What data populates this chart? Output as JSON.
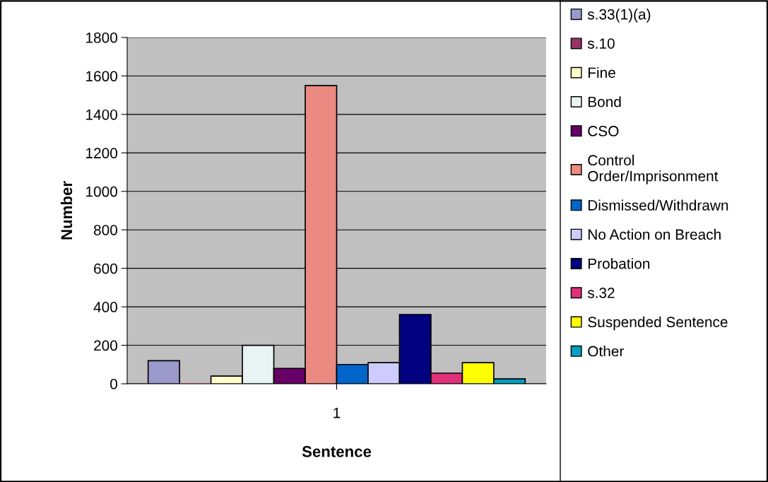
{
  "chart_data": {
    "type": "bar",
    "xlabel": "Sentence",
    "ylabel": "Number",
    "categories": [
      "1"
    ],
    "series": [
      {
        "name": "s.33(1)(a)",
        "color": "#9999cc",
        "values": [
          120
        ]
      },
      {
        "name": "s.10",
        "color": "#993366",
        "values": [
          0
        ]
      },
      {
        "name": "Fine",
        "color": "#ffffcc",
        "values": [
          40
        ]
      },
      {
        "name": "Bond",
        "color": "#e8f4f4",
        "values": [
          200
        ]
      },
      {
        "name": "CSO",
        "color": "#660066",
        "values": [
          80
        ]
      },
      {
        "name": "Control Order/Imprisonment",
        "color": "#ea8a80",
        "values": [
          1550
        ]
      },
      {
        "name": "Dismissed/Withdrawn",
        "color": "#0066cc",
        "values": [
          100
        ]
      },
      {
        "name": "No Action on Breach",
        "color": "#ccccff",
        "values": [
          110
        ]
      },
      {
        "name": "Probation",
        "color": "#000080",
        "values": [
          360
        ]
      },
      {
        "name": "s.32",
        "color": "#e0307a",
        "values": [
          55
        ]
      },
      {
        "name": "Suspended Sentence",
        "color": "#ffff00",
        "values": [
          110
        ]
      },
      {
        "name": "Other",
        "color": "#00a0c0",
        "values": [
          25
        ]
      }
    ],
    "ylim": [
      0,
      1800
    ],
    "yticks": [
      0,
      200,
      400,
      600,
      800,
      1000,
      1200,
      1400,
      1600,
      1800
    ],
    "grid": "y",
    "legend": "right"
  }
}
